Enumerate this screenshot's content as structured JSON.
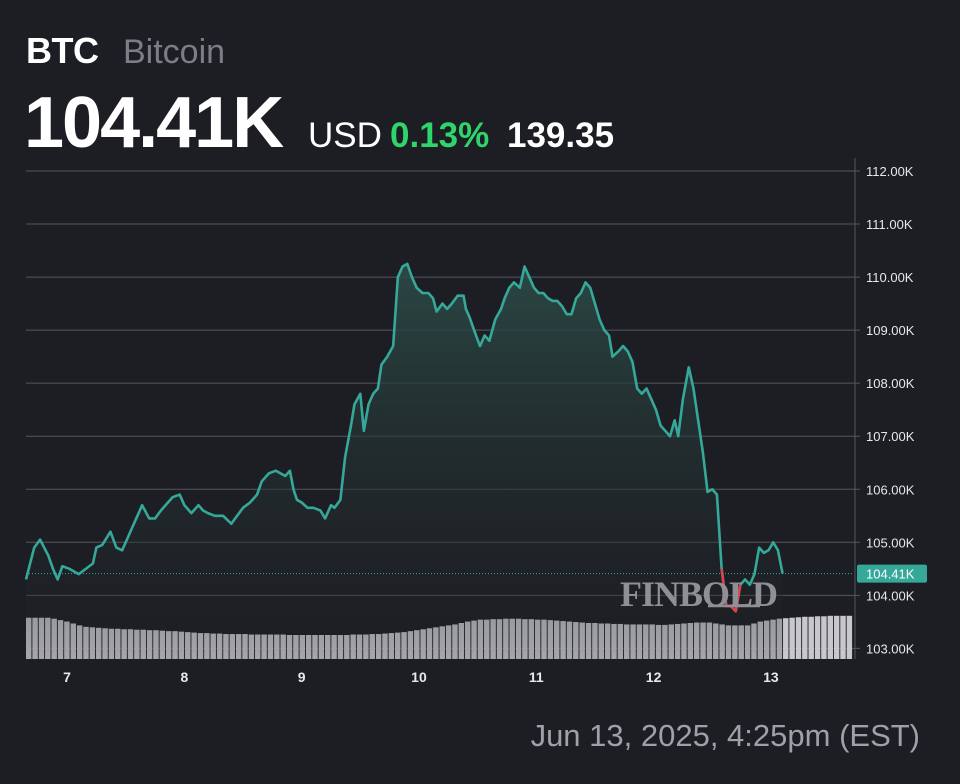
{
  "header": {
    "ticker": "BTC",
    "name": "Bitcoin",
    "price": "104.41K",
    "currency": "USD",
    "change_pct": "0.13%",
    "change_abs": "139.35"
  },
  "footer": {
    "timestamp": "Jun 13, 2025, 4:25pm (EST)"
  },
  "watermark": "FINBOLD",
  "colors": {
    "background": "#1d1e23",
    "line": "#35a89a",
    "line_down": "#e0424a",
    "area_top": "#2c4c48",
    "grid": "#55575d",
    "volume": "#c8c8cc",
    "positive": "#2fd46a",
    "price_badge": "#35a89a"
  },
  "chart_data": {
    "type": "line",
    "title": "",
    "xlabel": "",
    "ylabel": "",
    "ylim": [
      102800,
      112000
    ],
    "xlim": [
      6.65,
      13.7
    ],
    "x_ticks": [
      7,
      8,
      9,
      10,
      11,
      12,
      13
    ],
    "x_tick_labels": [
      "7",
      "8",
      "9",
      "10",
      "11",
      "12",
      "13"
    ],
    "y_ticks": [
      103000,
      104000,
      105000,
      106000,
      107000,
      108000,
      109000,
      110000,
      111000,
      112000
    ],
    "y_tick_labels": [
      "103.00K",
      "104.00K",
      "105.00K",
      "106.00K",
      "107.00K",
      "108.00K",
      "109.00K",
      "110.00K",
      "111.00K",
      "112.00K"
    ],
    "grid": true,
    "current_price": {
      "value": 104410,
      "label": "104.41K"
    },
    "series": [
      {
        "values": [
          [
            6.65,
            104300
          ],
          [
            6.72,
            104900
          ],
          [
            6.77,
            105050
          ],
          [
            6.84,
            104750
          ],
          [
            6.88,
            104500
          ],
          [
            6.92,
            104300
          ],
          [
            6.96,
            104550
          ],
          [
            7.02,
            104500
          ],
          [
            7.1,
            104400
          ],
          [
            7.22,
            104600
          ],
          [
            7.25,
            104900
          ],
          [
            7.3,
            104950
          ],
          [
            7.37,
            105200
          ],
          [
            7.42,
            104900
          ],
          [
            7.47,
            104850
          ],
          [
            7.52,
            105100
          ],
          [
            7.58,
            105400
          ],
          [
            7.64,
            105700
          ],
          [
            7.7,
            105450
          ],
          [
            7.75,
            105450
          ],
          [
            7.8,
            105600
          ],
          [
            7.86,
            105750
          ],
          [
            7.9,
            105850
          ],
          [
            7.96,
            105900
          ],
          [
            8.0,
            105700
          ],
          [
            8.06,
            105550
          ],
          [
            8.12,
            105700
          ],
          [
            8.16,
            105600
          ],
          [
            8.2,
            105550
          ],
          [
            8.26,
            105500
          ],
          [
            8.33,
            105500
          ],
          [
            8.4,
            105350
          ],
          [
            8.45,
            105500
          ],
          [
            8.5,
            105650
          ],
          [
            8.56,
            105750
          ],
          [
            8.62,
            105900
          ],
          [
            8.66,
            106150
          ],
          [
            8.72,
            106300
          ],
          [
            8.78,
            106350
          ],
          [
            8.82,
            106300
          ],
          [
            8.86,
            106250
          ],
          [
            8.9,
            106350
          ],
          [
            8.93,
            106000
          ],
          [
            8.96,
            105800
          ],
          [
            9.0,
            105750
          ],
          [
            9.05,
            105650
          ],
          [
            9.1,
            105650
          ],
          [
            9.16,
            105600
          ],
          [
            9.2,
            105450
          ],
          [
            9.25,
            105700
          ],
          [
            9.28,
            105650
          ],
          [
            9.33,
            105800
          ],
          [
            9.37,
            106600
          ],
          [
            9.42,
            107200
          ],
          [
            9.45,
            107600
          ],
          [
            9.5,
            107800
          ],
          [
            9.53,
            107100
          ],
          [
            9.57,
            107600
          ],
          [
            9.61,
            107800
          ],
          [
            9.65,
            107900
          ],
          [
            9.68,
            108350
          ],
          [
            9.73,
            108500
          ],
          [
            9.78,
            108700
          ],
          [
            9.82,
            110000
          ],
          [
            9.86,
            110200
          ],
          [
            9.9,
            110250
          ],
          [
            9.94,
            110000
          ],
          [
            9.98,
            109800
          ],
          [
            10.03,
            109700
          ],
          [
            10.08,
            109700
          ],
          [
            10.12,
            109600
          ],
          [
            10.15,
            109350
          ],
          [
            10.2,
            109500
          ],
          [
            10.24,
            109400
          ],
          [
            10.28,
            109500
          ],
          [
            10.33,
            109650
          ],
          [
            10.38,
            109650
          ],
          [
            10.4,
            109400
          ],
          [
            10.43,
            109250
          ],
          [
            10.47,
            109000
          ],
          [
            10.52,
            108700
          ],
          [
            10.56,
            108900
          ],
          [
            10.6,
            108800
          ],
          [
            10.65,
            109200
          ],
          [
            10.7,
            109400
          ],
          [
            10.73,
            109600
          ],
          [
            10.77,
            109800
          ],
          [
            10.81,
            109900
          ],
          [
            10.86,
            109800
          ],
          [
            10.9,
            110200
          ],
          [
            10.94,
            110000
          ],
          [
            10.98,
            109800
          ],
          [
            11.02,
            109700
          ],
          [
            11.06,
            109700
          ],
          [
            11.1,
            109600
          ],
          [
            11.14,
            109550
          ],
          [
            11.18,
            109550
          ],
          [
            11.22,
            109450
          ],
          [
            11.26,
            109300
          ],
          [
            11.3,
            109300
          ],
          [
            11.34,
            109600
          ],
          [
            11.38,
            109700
          ],
          [
            11.42,
            109900
          ],
          [
            11.46,
            109800
          ],
          [
            11.5,
            109500
          ],
          [
            11.54,
            109200
          ],
          [
            11.58,
            109000
          ],
          [
            11.62,
            108900
          ],
          [
            11.65,
            108500
          ],
          [
            11.7,
            108600
          ],
          [
            11.74,
            108700
          ],
          [
            11.78,
            108600
          ],
          [
            11.82,
            108400
          ],
          [
            11.86,
            107900
          ],
          [
            11.9,
            107800
          ],
          [
            11.94,
            107900
          ],
          [
            11.98,
            107700
          ],
          [
            12.02,
            107500
          ],
          [
            12.06,
            107200
          ],
          [
            12.1,
            107100
          ],
          [
            12.14,
            107000
          ],
          [
            12.18,
            107300
          ],
          [
            12.21,
            107000
          ],
          [
            12.25,
            107700
          ],
          [
            12.3,
            108300
          ],
          [
            12.34,
            107900
          ],
          [
            12.38,
            107300
          ],
          [
            12.42,
            106700
          ],
          [
            12.46,
            105950
          ],
          [
            12.5,
            106000
          ],
          [
            12.54,
            105900
          ],
          [
            12.58,
            104500
          ],
          [
            12.62,
            103800
          ],
          [
            12.66,
            103800
          ],
          [
            12.7,
            103700
          ],
          [
            12.74,
            104200
          ],
          [
            12.78,
            104300
          ],
          [
            12.82,
            104200
          ],
          [
            12.86,
            104400
          ],
          [
            12.9,
            104900
          ],
          [
            12.94,
            104800
          ],
          [
            12.98,
            104850
          ],
          [
            13.02,
            105000
          ],
          [
            13.06,
            104850
          ],
          [
            13.1,
            104410
          ]
        ]
      }
    ],
    "volume": [
      0.86,
      0.86,
      0.86,
      0.86,
      0.84,
      0.81,
      0.78,
      0.74,
      0.7,
      0.67,
      0.66,
      0.65,
      0.64,
      0.63,
      0.63,
      0.62,
      0.62,
      0.61,
      0.61,
      0.6,
      0.6,
      0.59,
      0.58,
      0.58,
      0.57,
      0.56,
      0.55,
      0.54,
      0.54,
      0.53,
      0.53,
      0.52,
      0.52,
      0.52,
      0.52,
      0.51,
      0.51,
      0.51,
      0.51,
      0.51,
      0.51,
      0.5,
      0.5,
      0.5,
      0.5,
      0.5,
      0.5,
      0.5,
      0.5,
      0.5,
      0.5,
      0.51,
      0.51,
      0.51,
      0.52,
      0.52,
      0.53,
      0.54,
      0.55,
      0.56,
      0.58,
      0.6,
      0.62,
      0.64,
      0.66,
      0.68,
      0.7,
      0.72,
      0.75,
      0.78,
      0.8,
      0.82,
      0.82,
      0.83,
      0.83,
      0.84,
      0.84,
      0.84,
      0.83,
      0.83,
      0.82,
      0.82,
      0.81,
      0.8,
      0.79,
      0.78,
      0.77,
      0.76,
      0.75,
      0.75,
      0.74,
      0.74,
      0.73,
      0.73,
      0.72,
      0.72,
      0.72,
      0.72,
      0.72,
      0.71,
      0.71,
      0.72,
      0.73,
      0.74,
      0.75,
      0.76,
      0.76,
      0.76,
      0.74,
      0.72,
      0.7,
      0.7,
      0.7,
      0.7,
      0.74,
      0.78,
      0.8,
      0.82,
      0.84,
      0.85,
      0.86,
      0.87,
      0.88,
      0.88,
      0.89,
      0.89,
      0.9,
      0.9,
      0.9,
      0.9
    ]
  }
}
